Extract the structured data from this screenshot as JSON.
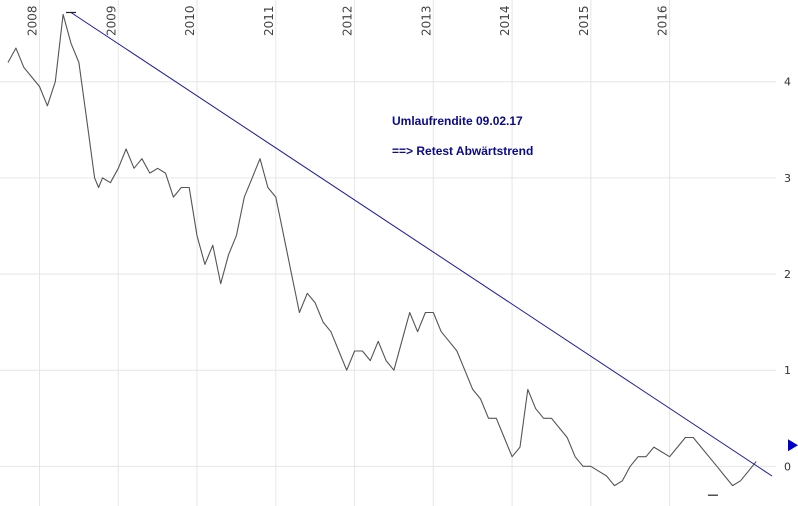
{
  "chart_data": {
    "type": "line",
    "title": "",
    "xlabel": "",
    "ylabel": "",
    "xlim": [
      2007.6,
      2017.3
    ],
    "ylim": [
      -0.35,
      4.85
    ],
    "x_ticks": [
      "2008",
      "2009",
      "2010",
      "2011",
      "2012",
      "2013",
      "2014",
      "2015",
      "2016"
    ],
    "y_ticks": [
      "0",
      "1",
      "2",
      "3",
      "4"
    ],
    "grid": true,
    "legend": "none",
    "annotations": [
      "Umlaufrendite 09.02.17",
      "==> Retest Abwärtstrend"
    ],
    "series": [
      {
        "color": "#555555",
        "x": [
          2007.6,
          2007.7,
          2007.8,
          2007.9,
          2008.0,
          2008.1,
          2008.2,
          2008.3,
          2008.4,
          2008.5,
          2008.6,
          2008.7,
          2008.75,
          2008.8,
          2008.9,
          2009.0,
          2009.1,
          2009.2,
          2009.3,
          2009.4,
          2009.5,
          2009.6,
          2009.7,
          2009.8,
          2009.9,
          2010.0,
          2010.1,
          2010.2,
          2010.3,
          2010.4,
          2010.5,
          2010.6,
          2010.7,
          2010.8,
          2010.9,
          2011.0,
          2011.1,
          2011.2,
          2011.25,
          2011.3,
          2011.4,
          2011.5,
          2011.55,
          2011.6,
          2011.7,
          2011.8,
          2011.9,
          2012.0,
          2012.1,
          2012.2,
          2012.3,
          2012.4,
          2012.5,
          2012.6,
          2012.7,
          2012.8,
          2012.9,
          2013.0,
          2013.1,
          2013.2,
          2013.3,
          2013.4,
          2013.5,
          2013.6,
          2013.7,
          2013.8,
          2013.9,
          2014.0,
          2014.1,
          2014.2,
          2014.3,
          2014.4,
          2014.5,
          2014.6,
          2014.7,
          2014.8,
          2014.9,
          2015.0,
          2015.1,
          2015.2,
          2015.25,
          2015.3,
          2015.4,
          2015.5,
          2015.6,
          2015.7,
          2015.8,
          2015.9,
          2016.0,
          2016.1,
          2016.2,
          2016.3,
          2016.4,
          2016.5,
          2016.6,
          2016.7,
          2016.8,
          2016.9,
          2017.0,
          2017.1
        ],
        "values": [
          4.2,
          4.35,
          4.15,
          4.05,
          3.95,
          3.75,
          4.0,
          4.7,
          4.4,
          4.2,
          3.6,
          3.0,
          2.9,
          3.0,
          2.95,
          3.1,
          3.3,
          3.1,
          3.2,
          3.05,
          3.1,
          3.05,
          2.8,
          2.9,
          2.9,
          2.4,
          2.1,
          2.3,
          1.9,
          2.2,
          2.4,
          2.8,
          3.0,
          3.2,
          2.9,
          2.8,
          2.4,
          2.0,
          1.8,
          1.6,
          1.8,
          1.7,
          1.6,
          1.5,
          1.4,
          1.2,
          1.0,
          1.2,
          1.2,
          1.1,
          1.3,
          1.1,
          1.0,
          1.3,
          1.6,
          1.4,
          1.6,
          1.6,
          1.4,
          1.3,
          1.2,
          1.0,
          0.8,
          0.7,
          0.5,
          0.5,
          0.3,
          0.1,
          0.2,
          0.8,
          0.6,
          0.5,
          0.5,
          0.4,
          0.3,
          0.1,
          0.0,
          0.0,
          -0.05,
          -0.1,
          -0.15,
          -0.2,
          -0.15,
          0.0,
          0.1,
          0.1,
          0.2,
          0.15,
          0.1,
          0.2,
          0.3,
          0.3,
          0.2,
          0.1,
          0.0,
          -0.1,
          -0.2,
          -0.15,
          -0.05,
          0.05
        ]
      },
      {
        "color": "#1a1aa0",
        "x": [
          2008.4,
          2017.3
        ],
        "values": [
          4.72,
          -0.1
        ]
      }
    ],
    "markers": [
      {
        "x": 2008.4,
        "value": 4.72
      },
      {
        "x": 2016.55,
        "value": -0.3
      }
    ],
    "current_marker": {
      "value": 0.22,
      "color": "#0000cc"
    }
  }
}
